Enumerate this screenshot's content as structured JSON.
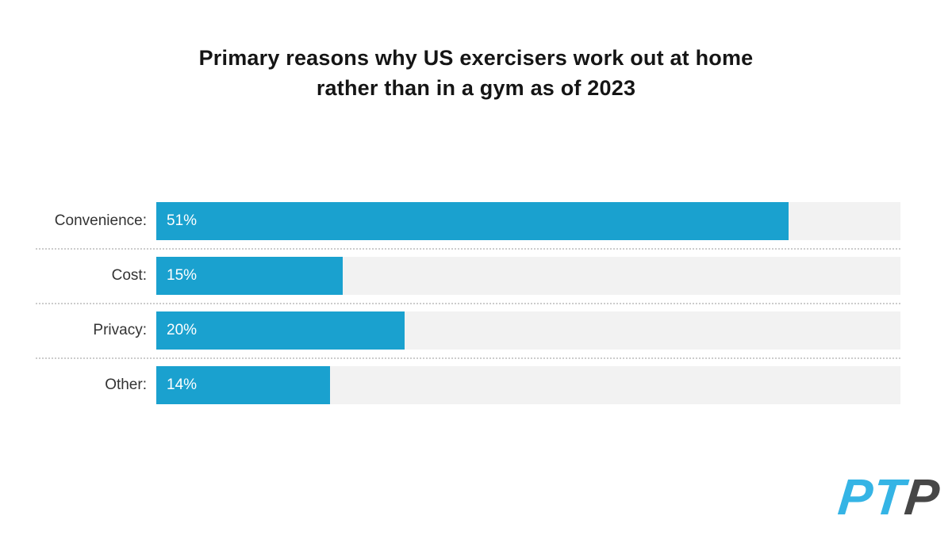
{
  "chart_data": {
    "type": "bar",
    "orientation": "horizontal",
    "title": "Primary reasons why US exercisers work out at home rather than in a gym as of 2023",
    "title_line1": "Primary reasons why US exercisers work out at home",
    "title_line2": "rather than in a gym as of 2023",
    "categories": [
      "Convenience:",
      "Cost:",
      "Privacy:",
      "Other:"
    ],
    "values": [
      51,
      15,
      20,
      14
    ],
    "value_labels": [
      "51%",
      "15%",
      "20%",
      "14%"
    ],
    "value_label_position": "inside-left",
    "xlabel": "",
    "ylabel": "",
    "xlim": [
      0,
      60
    ],
    "legend": "none",
    "grid": "dotted horizontal separators between rows",
    "bar_color": "#1AA1CF",
    "track_color": "#F2F2F2",
    "separator_color": "#CCCCCC",
    "value_text_color": "#FFFFFF",
    "label_text_color": "#333333",
    "title_color": "#151515"
  },
  "logo": {
    "text_blue": "PT",
    "text_gray": "P",
    "blue_color": "#35B4E5",
    "gray_color": "#474747"
  }
}
